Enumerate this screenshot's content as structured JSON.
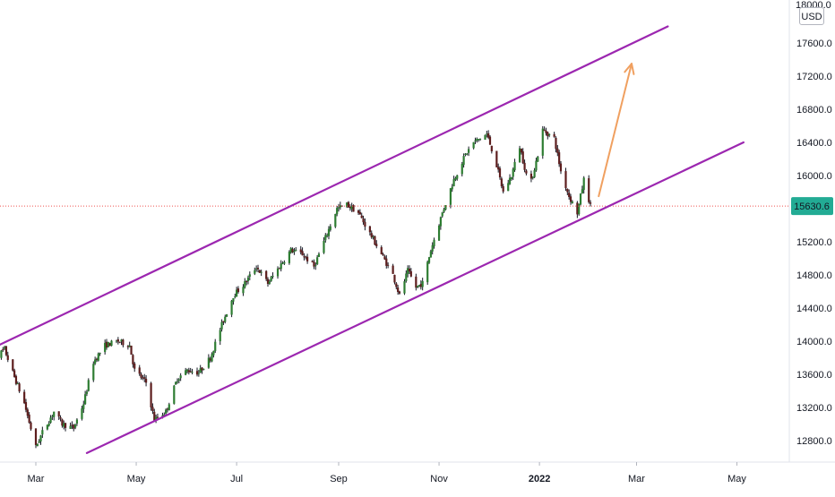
{
  "currency_badge": "USD",
  "chart_data": {
    "type": "candlestick",
    "title": "",
    "xlabel": "",
    "ylabel": "",
    "currency": "USD",
    "ylim": [
      12600,
      18000
    ],
    "y_ticks": [
      "12800.0",
      "13200.0",
      "13600.0",
      "14000.0",
      "14400.0",
      "14800.0",
      "15200.0",
      "15600.0",
      "16000.0",
      "16400.0",
      "16800.0",
      "17200.0",
      "17600.0"
    ],
    "y_top_label": "18000.0",
    "x_ticks": [
      {
        "label": "Mar",
        "date": "2021-03-01",
        "bold": false
      },
      {
        "label": "May",
        "date": "2021-05-01",
        "bold": false
      },
      {
        "label": "Jul",
        "date": "2021-07-01",
        "bold": false
      },
      {
        "label": "Sep",
        "date": "2021-09-01",
        "bold": false
      },
      {
        "label": "Nov",
        "date": "2021-11-01",
        "bold": false
      },
      {
        "label": "2022",
        "date": "2022-01-01",
        "bold": true
      },
      {
        "label": "Mar",
        "date": "2022-03-01",
        "bold": false
      },
      {
        "label": "May",
        "date": "2022-05-01",
        "bold": false
      }
    ],
    "last_price": {
      "value": 15630.6,
      "label": "15630.6",
      "color": "#22ab94"
    },
    "colors": {
      "up_body": "#2e7d32",
      "down_body": "#5d1e1e",
      "wick": "#131722",
      "channel": "#9c27b0",
      "arrow": "#f0a060",
      "price_line": "#ef5350"
    },
    "price_path": [
      [
        "2021-02-01",
        13750
      ],
      [
        "2021-02-10",
        13900
      ],
      [
        "2021-02-15",
        13620
      ],
      [
        "2021-02-22",
        13250
      ],
      [
        "2021-03-01",
        12720
      ],
      [
        "2021-03-05",
        12900
      ],
      [
        "2021-03-12",
        13150
      ],
      [
        "2021-03-17",
        13000
      ],
      [
        "2021-03-24",
        12950
      ],
      [
        "2021-03-30",
        13250
      ],
      [
        "2021-04-05",
        13750
      ],
      [
        "2021-04-12",
        13950
      ],
      [
        "2021-04-20",
        14000
      ],
      [
        "2021-04-27",
        13950
      ],
      [
        "2021-04-30",
        13650
      ],
      [
        "2021-05-07",
        13500
      ],
      [
        "2021-05-12",
        13050
      ],
      [
        "2021-05-19",
        13150
      ],
      [
        "2021-05-26",
        13550
      ],
      [
        "2021-06-01",
        13650
      ],
      [
        "2021-06-08",
        13620
      ],
      [
        "2021-06-15",
        13800
      ],
      [
        "2021-06-22",
        14200
      ],
      [
        "2021-06-29",
        14550
      ],
      [
        "2021-07-06",
        14700
      ],
      [
        "2021-07-13",
        14900
      ],
      [
        "2021-07-20",
        14700
      ],
      [
        "2021-07-27",
        14900
      ],
      [
        "2021-08-03",
        15100
      ],
      [
        "2021-08-10",
        15050
      ],
      [
        "2021-08-17",
        14900
      ],
      [
        "2021-08-24",
        15250
      ],
      [
        "2021-08-31",
        15600
      ],
      [
        "2021-09-06",
        15650
      ],
      [
        "2021-09-13",
        15550
      ],
      [
        "2021-09-20",
        15300
      ],
      [
        "2021-09-27",
        15050
      ],
      [
        "2021-10-04",
        14800
      ],
      [
        "2021-10-08",
        14550
      ],
      [
        "2021-10-13",
        14850
      ],
      [
        "2021-10-18",
        14650
      ],
      [
        "2021-10-22",
        14700
      ],
      [
        "2021-10-27",
        15100
      ],
      [
        "2021-11-03",
        15550
      ],
      [
        "2021-11-10",
        15950
      ],
      [
        "2021-11-17",
        16250
      ],
      [
        "2021-11-22",
        16400
      ],
      [
        "2021-11-30",
        16500
      ],
      [
        "2021-12-05",
        16200
      ],
      [
        "2021-12-10",
        15800
      ],
      [
        "2021-12-15",
        16000
      ],
      [
        "2021-12-20",
        16350
      ],
      [
        "2021-12-26",
        15850
      ],
      [
        "2021-12-31",
        16250
      ],
      [
        "2022-01-03",
        16550
      ],
      [
        "2022-01-10",
        16450
      ],
      [
        "2022-01-14",
        16050
      ],
      [
        "2022-01-19",
        15750
      ],
      [
        "2022-01-24",
        15550
      ],
      [
        "2022-01-28",
        15950
      ],
      [
        "2022-02-01",
        15630
      ]
    ],
    "channel_upper": {
      "from": [
        "2021-02-01",
        13900
      ],
      "to": [
        "2022-03-20",
        17800
      ]
    },
    "channel_lower": {
      "from": [
        "2021-04-01",
        12650
      ],
      "to": [
        "2022-05-05",
        16400
      ]
    },
    "arrow": {
      "from": [
        "2022-02-06",
        15750
      ],
      "to": [
        "2022-02-26",
        17350
      ]
    }
  }
}
